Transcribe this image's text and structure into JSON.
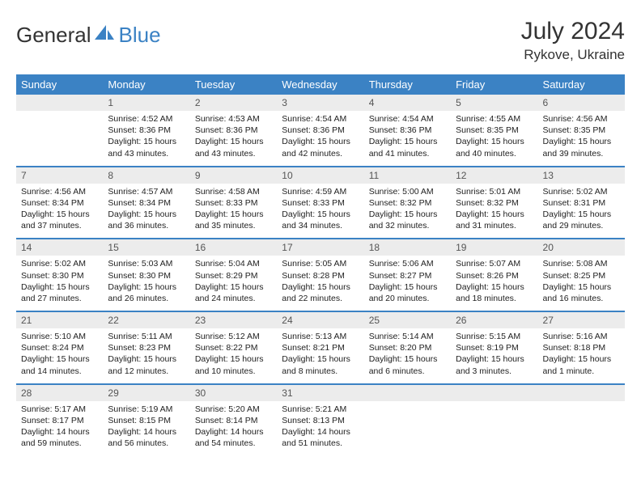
{
  "logo": {
    "part1": "General",
    "part2": "Blue"
  },
  "title": "July 2024",
  "location": "Rykove, Ukraine",
  "days": [
    "Sunday",
    "Monday",
    "Tuesday",
    "Wednesday",
    "Thursday",
    "Friday",
    "Saturday"
  ],
  "colors": {
    "accent": "#3b82c4",
    "dnum_bg": "#ececec"
  },
  "cells": [
    [
      null,
      {
        "n": "1",
        "sr": "4:52 AM",
        "ss": "8:36 PM",
        "dl": "15 hours and 43 minutes."
      },
      {
        "n": "2",
        "sr": "4:53 AM",
        "ss": "8:36 PM",
        "dl": "15 hours and 43 minutes."
      },
      {
        "n": "3",
        "sr": "4:54 AM",
        "ss": "8:36 PM",
        "dl": "15 hours and 42 minutes."
      },
      {
        "n": "4",
        "sr": "4:54 AM",
        "ss": "8:36 PM",
        "dl": "15 hours and 41 minutes."
      },
      {
        "n": "5",
        "sr": "4:55 AM",
        "ss": "8:35 PM",
        "dl": "15 hours and 40 minutes."
      },
      {
        "n": "6",
        "sr": "4:56 AM",
        "ss": "8:35 PM",
        "dl": "15 hours and 39 minutes."
      }
    ],
    [
      {
        "n": "7",
        "sr": "4:56 AM",
        "ss": "8:34 PM",
        "dl": "15 hours and 37 minutes."
      },
      {
        "n": "8",
        "sr": "4:57 AM",
        "ss": "8:34 PM",
        "dl": "15 hours and 36 minutes."
      },
      {
        "n": "9",
        "sr": "4:58 AM",
        "ss": "8:33 PM",
        "dl": "15 hours and 35 minutes."
      },
      {
        "n": "10",
        "sr": "4:59 AM",
        "ss": "8:33 PM",
        "dl": "15 hours and 34 minutes."
      },
      {
        "n": "11",
        "sr": "5:00 AM",
        "ss": "8:32 PM",
        "dl": "15 hours and 32 minutes."
      },
      {
        "n": "12",
        "sr": "5:01 AM",
        "ss": "8:32 PM",
        "dl": "15 hours and 31 minutes."
      },
      {
        "n": "13",
        "sr": "5:02 AM",
        "ss": "8:31 PM",
        "dl": "15 hours and 29 minutes."
      }
    ],
    [
      {
        "n": "14",
        "sr": "5:02 AM",
        "ss": "8:30 PM",
        "dl": "15 hours and 27 minutes."
      },
      {
        "n": "15",
        "sr": "5:03 AM",
        "ss": "8:30 PM",
        "dl": "15 hours and 26 minutes."
      },
      {
        "n": "16",
        "sr": "5:04 AM",
        "ss": "8:29 PM",
        "dl": "15 hours and 24 minutes."
      },
      {
        "n": "17",
        "sr": "5:05 AM",
        "ss": "8:28 PM",
        "dl": "15 hours and 22 minutes."
      },
      {
        "n": "18",
        "sr": "5:06 AM",
        "ss": "8:27 PM",
        "dl": "15 hours and 20 minutes."
      },
      {
        "n": "19",
        "sr": "5:07 AM",
        "ss": "8:26 PM",
        "dl": "15 hours and 18 minutes."
      },
      {
        "n": "20",
        "sr": "5:08 AM",
        "ss": "8:25 PM",
        "dl": "15 hours and 16 minutes."
      }
    ],
    [
      {
        "n": "21",
        "sr": "5:10 AM",
        "ss": "8:24 PM",
        "dl": "15 hours and 14 minutes."
      },
      {
        "n": "22",
        "sr": "5:11 AM",
        "ss": "8:23 PM",
        "dl": "15 hours and 12 minutes."
      },
      {
        "n": "23",
        "sr": "5:12 AM",
        "ss": "8:22 PM",
        "dl": "15 hours and 10 minutes."
      },
      {
        "n": "24",
        "sr": "5:13 AM",
        "ss": "8:21 PM",
        "dl": "15 hours and 8 minutes."
      },
      {
        "n": "25",
        "sr": "5:14 AM",
        "ss": "8:20 PM",
        "dl": "15 hours and 6 minutes."
      },
      {
        "n": "26",
        "sr": "5:15 AM",
        "ss": "8:19 PM",
        "dl": "15 hours and 3 minutes."
      },
      {
        "n": "27",
        "sr": "5:16 AM",
        "ss": "8:18 PM",
        "dl": "15 hours and 1 minute."
      }
    ],
    [
      {
        "n": "28",
        "sr": "5:17 AM",
        "ss": "8:17 PM",
        "dl": "14 hours and 59 minutes."
      },
      {
        "n": "29",
        "sr": "5:19 AM",
        "ss": "8:15 PM",
        "dl": "14 hours and 56 minutes."
      },
      {
        "n": "30",
        "sr": "5:20 AM",
        "ss": "8:14 PM",
        "dl": "14 hours and 54 minutes."
      },
      {
        "n": "31",
        "sr": "5:21 AM",
        "ss": "8:13 PM",
        "dl": "14 hours and 51 minutes."
      },
      null,
      null,
      null
    ]
  ]
}
